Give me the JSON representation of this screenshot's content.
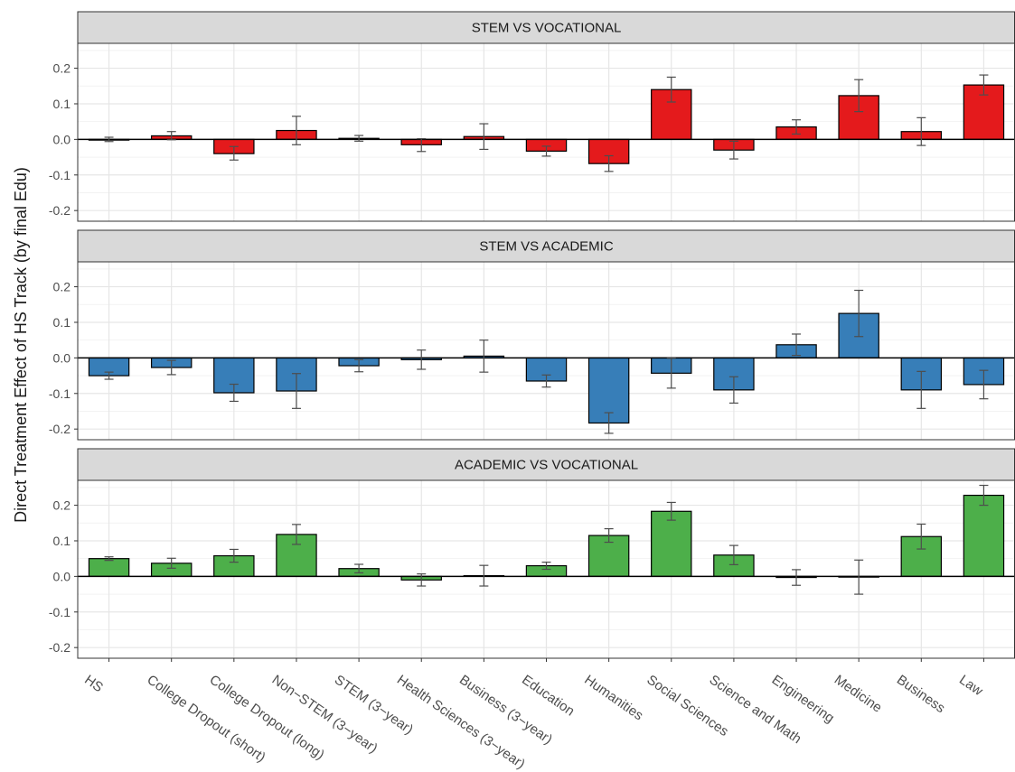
{
  "chart_data": {
    "type": "bar",
    "ylabel": "Direct Treatment Effect of HS Track (by final Edu)",
    "xlabel": "",
    "ylim": [
      -0.23,
      0.27
    ],
    "yticks": [
      -0.2,
      -0.1,
      0.0,
      0.1,
      0.2
    ],
    "grid": true,
    "legend": "none",
    "categories": [
      "HS",
      "College Dropout (short)",
      "College Dropout (long)",
      "Non−STEM (3−year)",
      "STEM (3−year)",
      "Health Sciences (3−year)",
      "Business (3−year)",
      "Education",
      "Humanities",
      "Social Sciences",
      "Science and Math",
      "Engineering",
      "Medicine",
      "Business",
      "Law"
    ],
    "panels": [
      {
        "title": "STEM VS VOCATIONAL",
        "color": "#e41a1c",
        "values": [
          0.0,
          0.01,
          -0.04,
          0.025,
          0.003,
          -0.015,
          0.008,
          -0.033,
          -0.068,
          0.14,
          -0.03,
          0.035,
          0.123,
          0.022,
          0.153
        ],
        "err_low": [
          -0.006,
          -0.001,
          -0.058,
          -0.015,
          -0.005,
          -0.034,
          -0.028,
          -0.047,
          -0.09,
          0.105,
          -0.055,
          0.015,
          0.078,
          -0.017,
          0.125
        ],
        "err_high": [
          0.006,
          0.022,
          -0.02,
          0.065,
          0.011,
          0.002,
          0.044,
          -0.019,
          -0.046,
          0.175,
          -0.005,
          0.055,
          0.168,
          0.061,
          0.181
        ]
      },
      {
        "title": "STEM VS ACADEMIC",
        "color": "#377eb8",
        "values": [
          -0.05,
          -0.027,
          -0.098,
          -0.093,
          -0.022,
          -0.005,
          0.005,
          -0.065,
          -0.183,
          -0.043,
          -0.09,
          0.037,
          0.125,
          -0.09,
          -0.075
        ],
        "err_low": [
          -0.06,
          -0.047,
          -0.122,
          -0.142,
          -0.039,
          -0.032,
          -0.04,
          -0.082,
          -0.212,
          -0.085,
          -0.127,
          0.007,
          0.06,
          -0.142,
          -0.115
        ],
        "err_high": [
          -0.04,
          -0.007,
          -0.074,
          -0.044,
          -0.005,
          0.022,
          0.05,
          -0.048,
          -0.154,
          -0.001,
          -0.053,
          0.067,
          0.19,
          -0.038,
          -0.035
        ]
      },
      {
        "title": "ACADEMIC VS VOCATIONAL",
        "color": "#4daf4a",
        "values": [
          0.05,
          0.037,
          0.058,
          0.118,
          0.022,
          -0.01,
          0.002,
          0.03,
          0.115,
          0.183,
          0.06,
          -0.003,
          -0.002,
          0.112,
          0.228
        ],
        "err_low": [
          0.045,
          0.023,
          0.04,
          0.09,
          0.01,
          -0.027,
          -0.027,
          0.02,
          0.096,
          0.158,
          0.033,
          -0.025,
          -0.05,
          0.077,
          0.2
        ],
        "err_high": [
          0.055,
          0.051,
          0.076,
          0.146,
          0.034,
          0.007,
          0.031,
          0.04,
          0.134,
          0.208,
          0.087,
          0.019,
          0.046,
          0.147,
          0.256
        ]
      }
    ]
  }
}
